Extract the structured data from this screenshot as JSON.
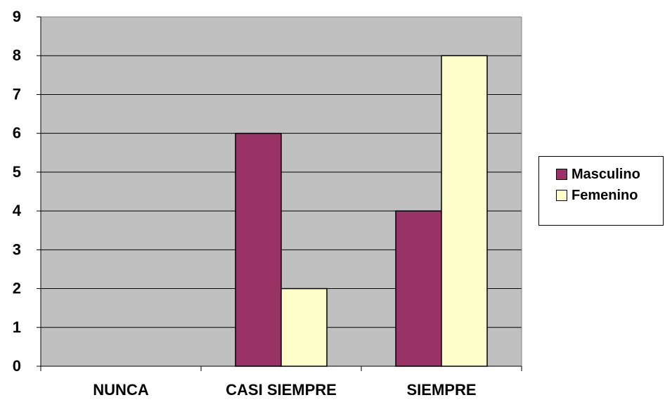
{
  "chart_data": {
    "type": "bar",
    "categories": [
      "NUNCA",
      "CASI SIEMPRE",
      "SIEMPRE"
    ],
    "series": [
      {
        "name": "Masculino",
        "values": [
          0,
          6,
          4
        ],
        "color": "#993366"
      },
      {
        "name": "Femenino",
        "values": [
          0,
          2,
          8
        ],
        "color": "#FFFFCC"
      }
    ],
    "ylim": [
      0,
      9
    ],
    "yticks": [
      "0",
      "1",
      "2",
      "3",
      "4",
      "5",
      "6",
      "7",
      "8",
      "9"
    ],
    "grid": true,
    "plot_background": "#C0C0C0",
    "legend_position": "right"
  }
}
